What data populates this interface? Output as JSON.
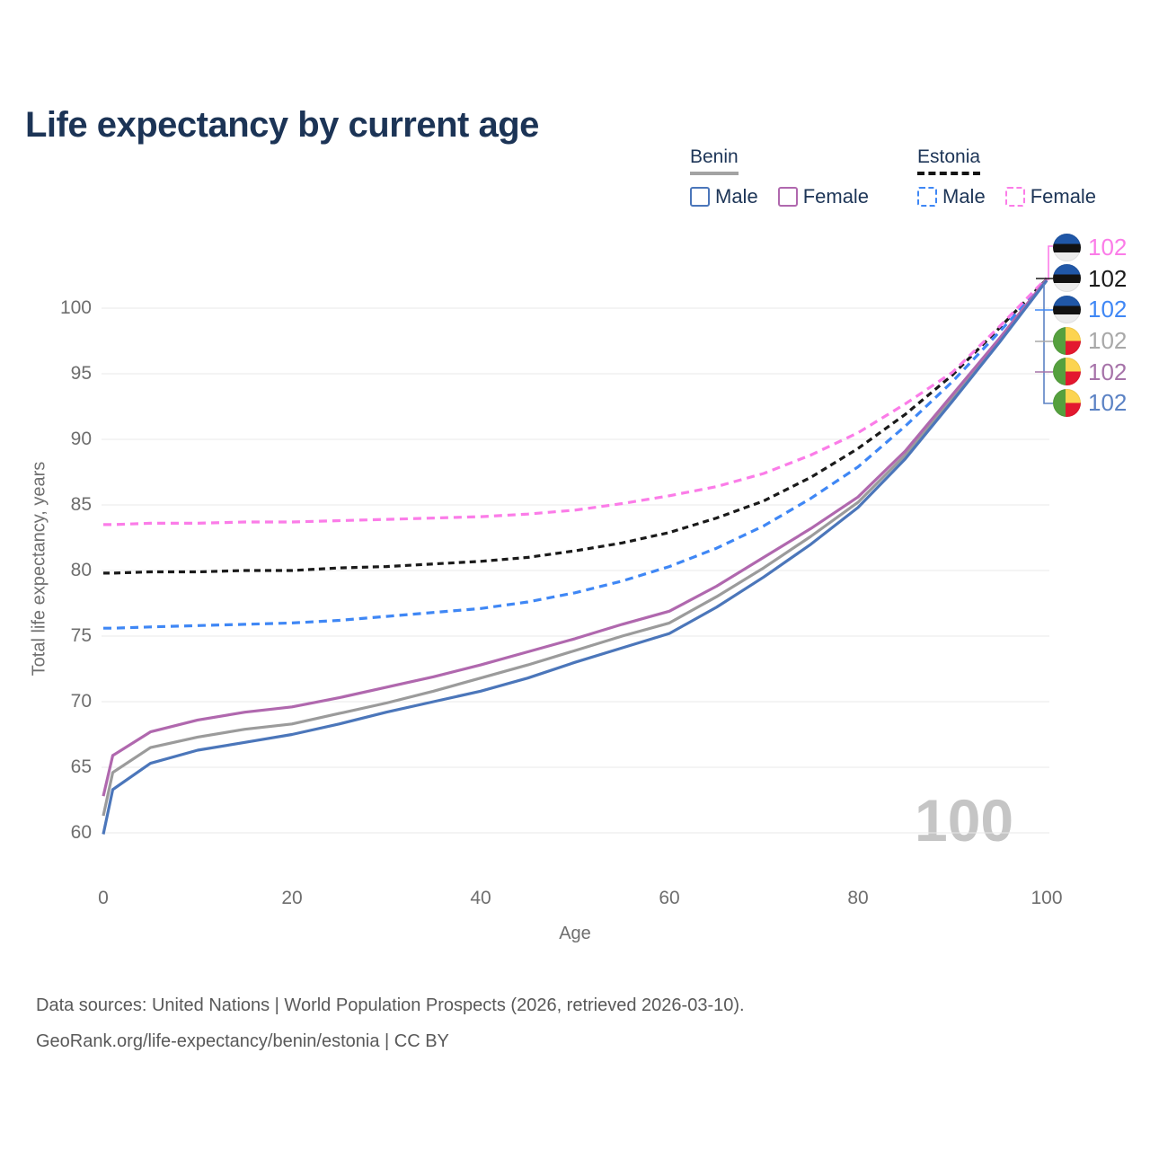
{
  "title": "Life expectancy by current age",
  "legend": {
    "groups": [
      {
        "name": "Benin",
        "style": "solid",
        "items": [
          {
            "label": "Male",
            "color": "#4b76ba"
          },
          {
            "label": "Female",
            "color": "#b068ae"
          }
        ]
      },
      {
        "name": "Estonia",
        "style": "dashed",
        "items": [
          {
            "label": "Male",
            "color": "#3f87f5"
          },
          {
            "label": "Female",
            "color": "#fb7ce8"
          }
        ]
      }
    ]
  },
  "watermark": "100",
  "footer": {
    "line1": "Data sources: United Nations | World Population Prospects (2026, retrieved 2026-03-10).",
    "line2": "GeoRank.org/life-expectancy/benin/estonia | CC BY"
  },
  "chart_data": {
    "type": "line",
    "title": "Life expectancy by current age",
    "xlabel": "Age",
    "ylabel": "Total life expectancy, years",
    "xlim": [
      0,
      100
    ],
    "ylim": [
      57.5,
      103.5
    ],
    "xticks": [
      0,
      20,
      40,
      60,
      80,
      100
    ],
    "yticks": [
      60,
      65,
      70,
      75,
      80,
      85,
      90,
      95,
      100
    ],
    "grid": "horizontal",
    "gridline_color": "#e8e8e8",
    "x": [
      0,
      1,
      5,
      10,
      15,
      20,
      25,
      30,
      35,
      40,
      45,
      50,
      55,
      60,
      65,
      70,
      75,
      80,
      85,
      90,
      95,
      100
    ],
    "series": [
      {
        "name": "Estonia Total",
        "country": "Estonia",
        "sex": "total",
        "color": "#1a1a1a",
        "dash": "7 5",
        "values": [
          79.8,
          79.8,
          79.9,
          79.9,
          80.0,
          80.0,
          80.2,
          80.3,
          80.5,
          80.7,
          81.0,
          81.5,
          82.1,
          82.9,
          84.0,
          85.3,
          87.1,
          89.3,
          91.9,
          94.9,
          98.5,
          102.2
        ]
      },
      {
        "name": "Estonia Male",
        "country": "Estonia",
        "sex": "male",
        "color": "#3f87f5",
        "dash": "9 6",
        "values": [
          75.6,
          75.6,
          75.7,
          75.8,
          75.9,
          76.0,
          76.2,
          76.5,
          76.8,
          77.1,
          77.6,
          78.3,
          79.2,
          80.3,
          81.7,
          83.4,
          85.5,
          87.9,
          91.0,
          94.4,
          98.2,
          102.1
        ]
      },
      {
        "name": "Estonia Female",
        "country": "Estonia",
        "sex": "female",
        "color": "#fb7ce8",
        "dash": "9 6",
        "values": [
          83.5,
          83.5,
          83.6,
          83.6,
          83.7,
          83.7,
          83.8,
          83.9,
          84.0,
          84.1,
          84.3,
          84.6,
          85.1,
          85.7,
          86.4,
          87.4,
          88.8,
          90.5,
          92.7,
          95.1,
          98.6,
          102.3
        ]
      },
      {
        "name": "Benin Total",
        "country": "Benin",
        "sex": "total",
        "color": "#9b9b9b",
        "dash": null,
        "values": [
          61.3,
          64.6,
          66.5,
          67.3,
          67.9,
          68.3,
          69.1,
          69.9,
          70.8,
          71.8,
          72.8,
          73.9,
          75.0,
          76.0,
          78.0,
          80.2,
          82.6,
          85.2,
          88.8,
          93.2,
          97.6,
          102.1
        ]
      },
      {
        "name": "Benin Female",
        "country": "Benin",
        "sex": "female",
        "color": "#b068ae",
        "dash": null,
        "values": [
          62.8,
          65.9,
          67.7,
          68.6,
          69.2,
          69.6,
          70.3,
          71.1,
          71.9,
          72.8,
          73.8,
          74.8,
          75.9,
          76.9,
          78.8,
          81.0,
          83.2,
          85.6,
          89.1,
          93.4,
          97.7,
          102.2
        ]
      },
      {
        "name": "Benin Male",
        "country": "Benin",
        "sex": "male",
        "color": "#4b76ba",
        "dash": null,
        "values": [
          59.9,
          63.3,
          65.3,
          66.3,
          66.9,
          67.5,
          68.3,
          69.2,
          70.0,
          70.8,
          71.8,
          73.0,
          74.1,
          75.2,
          77.2,
          79.5,
          82.0,
          84.8,
          88.5,
          92.9,
          97.4,
          102.1
        ]
      }
    ],
    "legend_position": "top-right",
    "end_labels": [
      {
        "flag": "estonia",
        "series": "Estonia Female",
        "value": "102",
        "color": "#fb7ce8"
      },
      {
        "flag": "estonia",
        "series": "Estonia Total",
        "value": "102",
        "color": "#1a1a1a"
      },
      {
        "flag": "estonia",
        "series": "Estonia Male",
        "value": "102",
        "color": "#3f87f5"
      },
      {
        "flag": "benin",
        "series": "Benin Total",
        "value": "102",
        "color": "#a8a8a8"
      },
      {
        "flag": "benin",
        "series": "Benin Female",
        "value": "102",
        "color": "#a673a9"
      },
      {
        "flag": "benin",
        "series": "Benin Male",
        "value": "102",
        "color": "#5b82c4"
      }
    ]
  }
}
